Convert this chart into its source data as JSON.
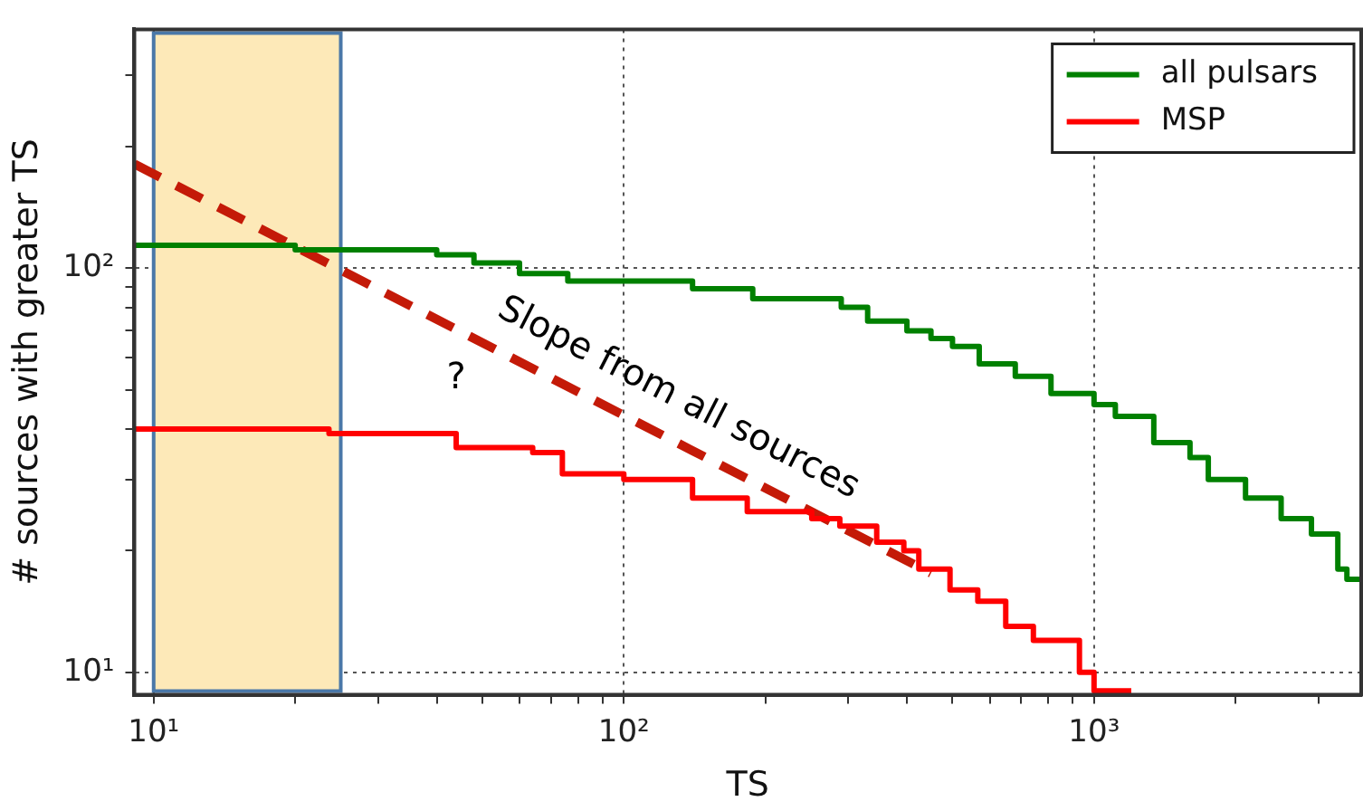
{
  "chart_data": {
    "type": "step",
    "xlabel": "TS",
    "ylabel": "# sources with greater TS",
    "log": "xy",
    "grid": true,
    "legend": "top right",
    "xlim": [
      9.1,
      3700
    ],
    "ylim": [
      8.8,
      390
    ],
    "xticks": [
      {
        "value": 10,
        "label": "10¹"
      },
      {
        "value": 20,
        "label": null
      },
      {
        "value": 30,
        "label": null
      },
      {
        "value": 40,
        "label": null
      },
      {
        "value": 50,
        "label": null
      },
      {
        "value": 60,
        "label": null
      },
      {
        "value": 70,
        "label": null
      },
      {
        "value": 80,
        "label": null
      },
      {
        "value": 90,
        "label": null
      },
      {
        "value": 100,
        "label": "10²"
      },
      {
        "value": 200,
        "label": null
      },
      {
        "value": 300,
        "label": null
      },
      {
        "value": 400,
        "label": null
      },
      {
        "value": 500,
        "label": null
      },
      {
        "value": 600,
        "label": null
      },
      {
        "value": 700,
        "label": null
      },
      {
        "value": 800,
        "label": null
      },
      {
        "value": 900,
        "label": null
      },
      {
        "value": 1000,
        "label": "10³"
      },
      {
        "value": 2000,
        "label": null
      },
      {
        "value": 3000,
        "label": null
      }
    ],
    "yticks": [
      {
        "value": 10,
        "label": "10¹"
      },
      {
        "value": 20,
        "label": null
      },
      {
        "value": 30,
        "label": null
      },
      {
        "value": 40,
        "label": null
      },
      {
        "value": 50,
        "label": null
      },
      {
        "value": 60,
        "label": null
      },
      {
        "value": 70,
        "label": null
      },
      {
        "value": 80,
        "label": null
      },
      {
        "value": 90,
        "label": null
      },
      {
        "value": 100,
        "label": "10²"
      },
      {
        "value": 200,
        "label": null
      },
      {
        "value": 300,
        "label": null
      }
    ],
    "bands": [
      {
        "axis": "x",
        "from": 10,
        "to": 25,
        "color": "#fde9b8"
      }
    ],
    "series": [
      {
        "name": "all pulsars",
        "color": "#008000",
        "x": [
          9.1,
          20,
          40,
          48,
          60,
          76,
          140,
          188,
          290,
          330,
          400,
          450,
          500,
          570,
          680,
          810,
          1000,
          1110,
          1340,
          1600,
          1750,
          2100,
          2500,
          2900,
          3300,
          3450,
          3700
        ],
        "values": [
          114,
          111,
          108,
          103,
          97,
          93,
          89,
          84,
          80,
          74,
          70,
          67,
          64,
          58,
          54,
          49,
          46,
          43,
          37,
          34,
          30,
          27,
          24,
          22,
          18,
          17,
          17
        ]
      },
      {
        "name": "MSP",
        "color": "#ff0000",
        "x": [
          9.1,
          23.6,
          44,
          64,
          74,
          100,
          140,
          183,
          251,
          288,
          345,
          394,
          424,
          494,
          566,
          649,
          743,
          931,
          1000,
          1200
        ],
        "values": [
          40,
          39,
          36,
          35,
          31,
          30,
          27,
          25,
          24,
          23,
          21,
          20,
          18,
          16,
          15,
          13,
          12,
          10,
          9,
          9
        ]
      },
      {
        "type": "line",
        "color": "#c41a08",
        "line_style": "dashed",
        "x": [
          9.1,
          450
        ],
        "values": [
          181,
          17.6
        ]
      }
    ],
    "annotations": [
      "Slope from all sources",
      "?"
    ]
  }
}
